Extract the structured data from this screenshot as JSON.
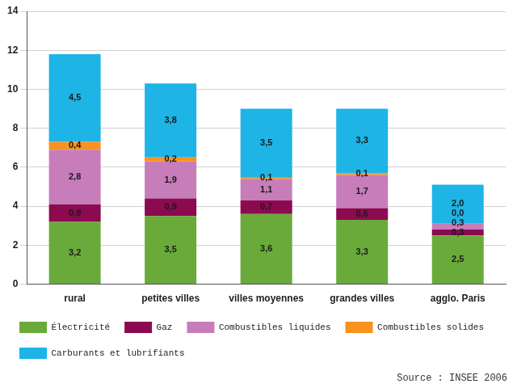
{
  "chart_data": {
    "type": "bar",
    "stacked": true,
    "data_labels": true,
    "grid": true,
    "legend": "bottom",
    "categories": [
      "rural",
      "petites villes",
      "villes moyennes",
      "grandes villes",
      "agglo. Paris"
    ],
    "ylim": [
      0,
      14
    ],
    "yticks": [
      0,
      2,
      4,
      6,
      8,
      10,
      12,
      14
    ],
    "series": [
      {
        "name": "Électricité",
        "color": "#6aaa3a",
        "values": [
          3.2,
          3.5,
          3.6,
          3.3,
          2.5
        ],
        "value_labels": [
          "3,2",
          "3,5",
          "3,6",
          "3,3",
          "2,5"
        ]
      },
      {
        "name": "Gaz",
        "color": "#8b0a50",
        "values": [
          0.9,
          0.9,
          0.7,
          0.6,
          0.3
        ],
        "value_labels": [
          "0,9",
          "0,9",
          "0,7",
          "0,6",
          "0,3"
        ]
      },
      {
        "name": "Combustibles liquides",
        "color": "#c77dba",
        "values": [
          2.8,
          1.9,
          1.1,
          1.7,
          0.3
        ],
        "value_labels": [
          "2,8",
          "1,9",
          "1,1",
          "1,7",
          "0,3"
        ]
      },
      {
        "name": "Combustibles solides",
        "color": "#f7931e",
        "values": [
          0.4,
          0.2,
          0.1,
          0.1,
          0.0
        ],
        "value_labels": [
          "0,4",
          "0,2",
          "0,1",
          "0,1",
          "0,0"
        ]
      },
      {
        "name": "Carburants et lubrifiants",
        "color": "#1eb4e6",
        "values": [
          4.5,
          3.8,
          3.5,
          3.3,
          2.0
        ],
        "value_labels": [
          "4,5",
          "3,8",
          "3,5",
          "3,3",
          "2,0"
        ]
      }
    ],
    "annotations": [
      "Source : INSEE 2006"
    ]
  }
}
